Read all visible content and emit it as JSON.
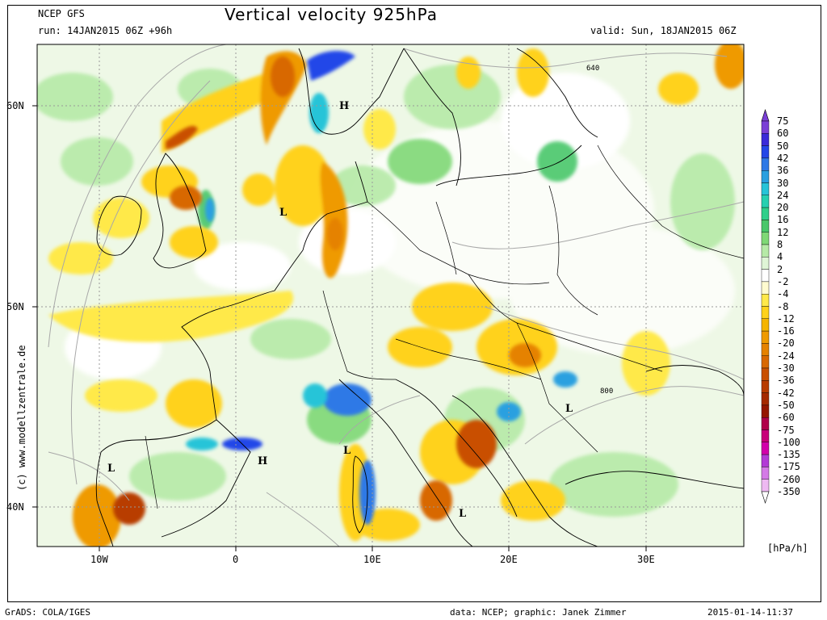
{
  "header": {
    "model": "NCEP GFS",
    "run": "run: 14JAN2015 06Z +96h",
    "title": "Vertical velocity 925hPa",
    "valid": "valid: Sun, 18JAN2015 06Z"
  },
  "footer": {
    "left": "GrADS: COLA/IGES",
    "right": "data: NCEP; graphic: Janek Zimmer",
    "timestamp": "2015-01-14-11:37"
  },
  "credit": "(c) www.modellzentrale.de",
  "axes": {
    "lat_labels": [
      "60N",
      "50N",
      "40N"
    ],
    "lon_labels": [
      "10W",
      "0",
      "10E",
      "20E",
      "30E"
    ]
  },
  "map_labels": {
    "pressure_centers": [
      {
        "text": "H"
      },
      {
        "text": "L"
      },
      {
        "text": "L"
      },
      {
        "text": "H"
      },
      {
        "text": "L"
      },
      {
        "text": "L"
      },
      {
        "text": "L"
      }
    ],
    "contours": [
      "640",
      "800"
    ]
  },
  "colorbar": {
    "unit": "[hPa/h]",
    "labels": [
      "75",
      "60",
      "50",
      "42",
      "36",
      "30",
      "24",
      "20",
      "16",
      "12",
      "8",
      "4",
      "2",
      "-2",
      "-4",
      "-8",
      "-12",
      "-16",
      "-20",
      "-24",
      "-30",
      "-36",
      "-42",
      "-50",
      "-60",
      "-75",
      "-100",
      "-135",
      "-175",
      "-260",
      "-350"
    ],
    "colors": [
      "#7a3fd6",
      "#3b2bd9",
      "#2447e8",
      "#2f79e6",
      "#2aa0e0",
      "#27c4d8",
      "#26d0b0",
      "#2fcf8a",
      "#49c76a",
      "#7fd876",
      "#b6eaa7",
      "#dff5d6",
      "#ffffff",
      "#fffbd0",
      "#ffe94a",
      "#ffd21a",
      "#f5b400",
      "#ef9a00",
      "#e58200",
      "#d86800",
      "#c95000",
      "#b83c00",
      "#a52a00",
      "#941600",
      "#b0004a",
      "#c8007a",
      "#d200aa",
      "#b23ad6",
      "#d47ae6",
      "#eeb9f2"
    ]
  },
  "legend_colors": {
    "land": "#f7f7f7",
    "coast": "#000000",
    "border": "#000000",
    "grid": "#999999",
    "isobar": "#a8a8a8"
  }
}
